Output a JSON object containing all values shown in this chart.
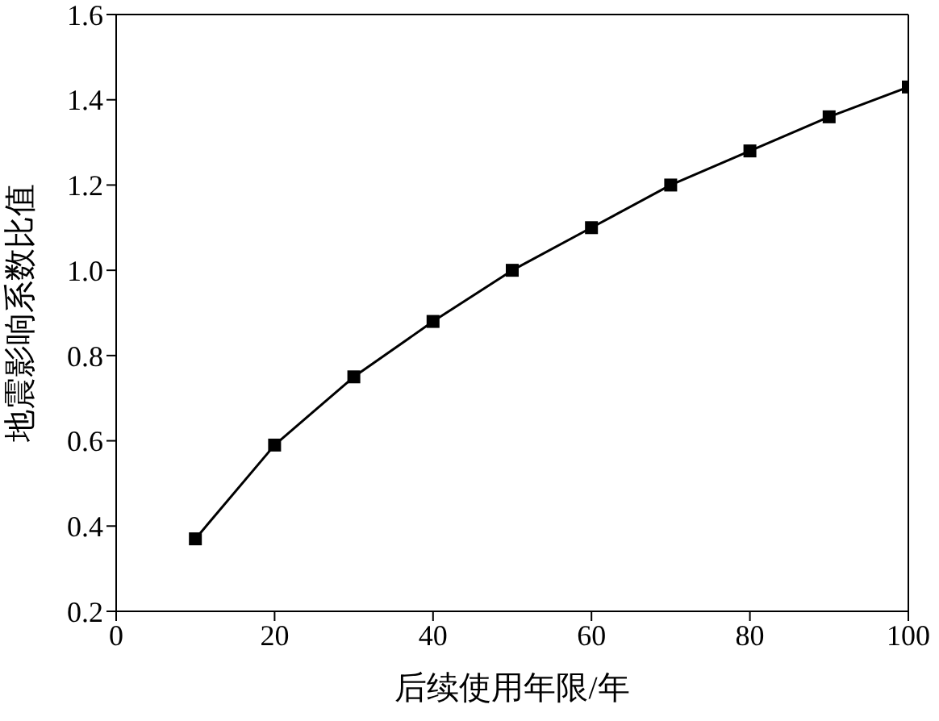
{
  "chart_data": {
    "type": "line",
    "xlabel": "后续使用年限/年",
    "ylabel": "地震影响系数比值",
    "x": [
      10,
      20,
      30,
      40,
      50,
      60,
      70,
      80,
      90,
      100
    ],
    "series": [
      {
        "color": "#000000",
        "values": [
          0.37,
          0.59,
          0.75,
          0.88,
          1.0,
          1.1,
          1.2,
          1.28,
          1.36,
          1.43
        ]
      }
    ],
    "xlim": [
      0,
      100
    ],
    "xticks": [
      0,
      20,
      40,
      60,
      80,
      100
    ],
    "ylim": [
      0.2,
      1.6
    ],
    "yticks": [
      {
        "value": 0.2,
        "label": "0.2"
      },
      {
        "value": 0.4,
        "label": "0.4"
      },
      {
        "value": 0.6,
        "label": "0.6"
      },
      {
        "value": 0.8,
        "label": "0.8"
      },
      {
        "value": 1,
        "label": "1.0"
      },
      {
        "value": 1.2,
        "label": "1.2"
      },
      {
        "value": 1.4,
        "label": "1.4"
      },
      {
        "value": 1.6,
        "label": "1.6"
      }
    ],
    "grid": false,
    "legend": false,
    "marker": "square",
    "line_style": "solid"
  }
}
